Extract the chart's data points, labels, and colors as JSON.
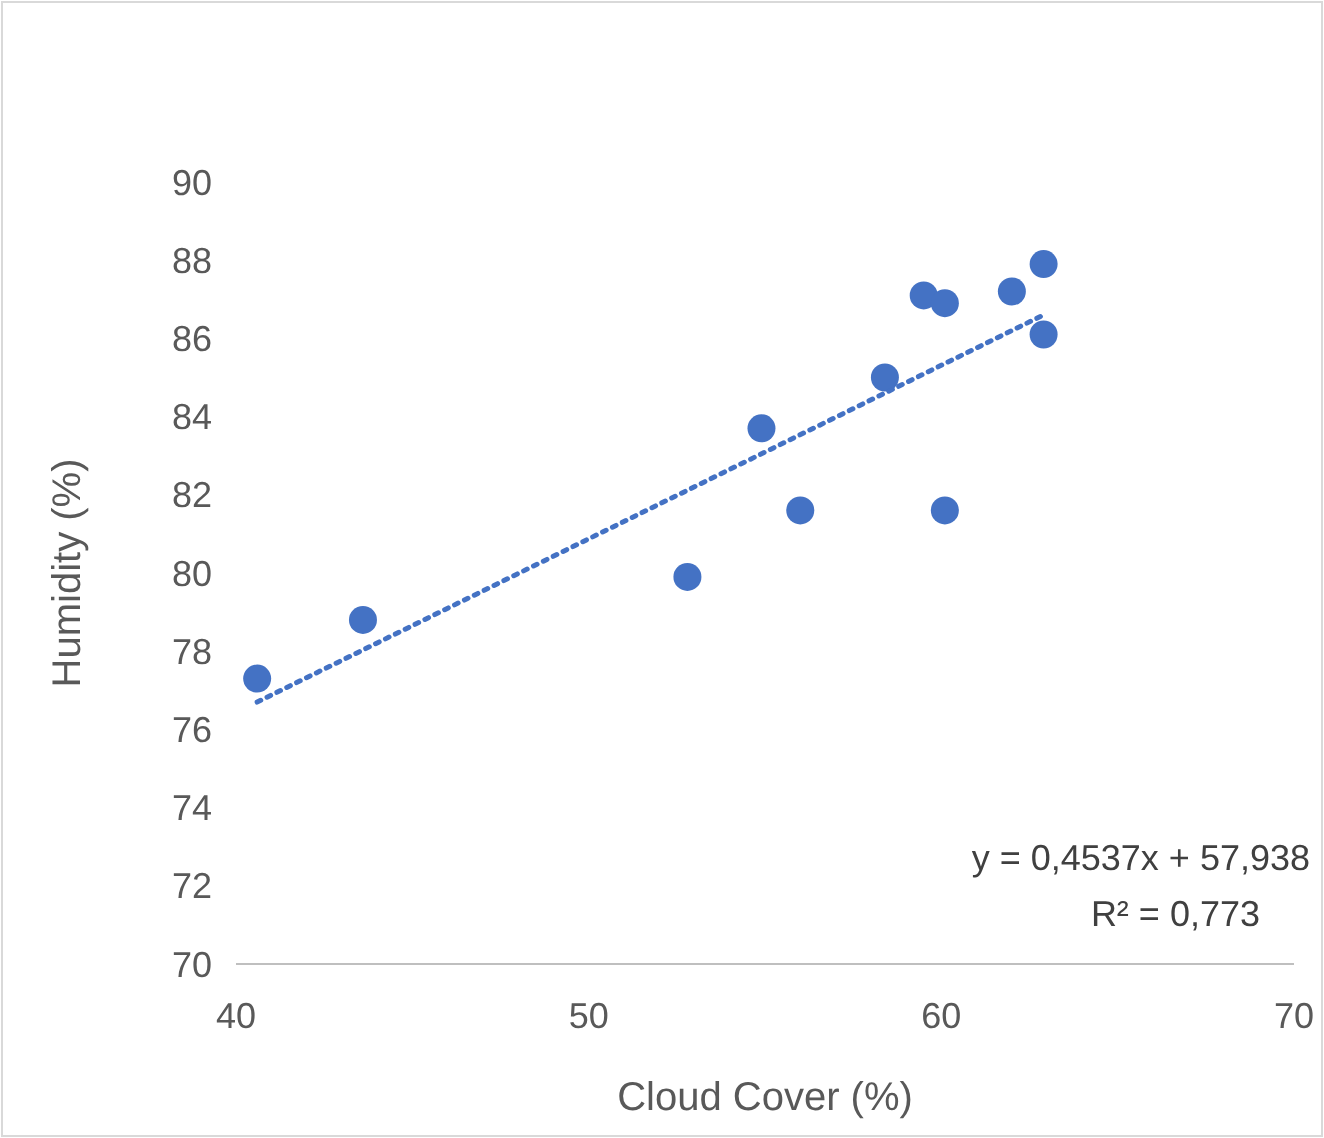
{
  "chart_data": {
    "type": "scatter",
    "xlabel": "Cloud Cover (%)",
    "ylabel": "Humidity (%)",
    "xlim": [
      40,
      70
    ],
    "xticks": [
      40,
      50,
      60,
      70
    ],
    "ylim": [
      70,
      90
    ],
    "yticks": [
      70,
      72,
      74,
      76,
      78,
      80,
      82,
      84,
      86,
      88,
      90
    ],
    "grid": false,
    "marker": "circle",
    "series": [
      {
        "color": "#4472c4",
        "x": [
          40.6,
          43.6,
          52.8,
          54.9,
          56.0,
          58.4,
          59.5,
          60.1,
          60.1,
          62.0,
          62.9,
          62.9
        ],
        "values": [
          77.3,
          78.8,
          79.9,
          83.7,
          81.6,
          85.0,
          87.1,
          86.9,
          81.6,
          87.2,
          86.1,
          87.9
        ]
      },
      {
        "type": "line",
        "color": "#4472c4",
        "line_style": "dotted",
        "marker": "none",
        "x": [
          40.6,
          62.9
        ],
        "values": [
          76.7,
          86.6
        ]
      }
    ],
    "annotations": [
      "y = 0,4537x + 57,938",
      "R² = 0,773"
    ]
  }
}
